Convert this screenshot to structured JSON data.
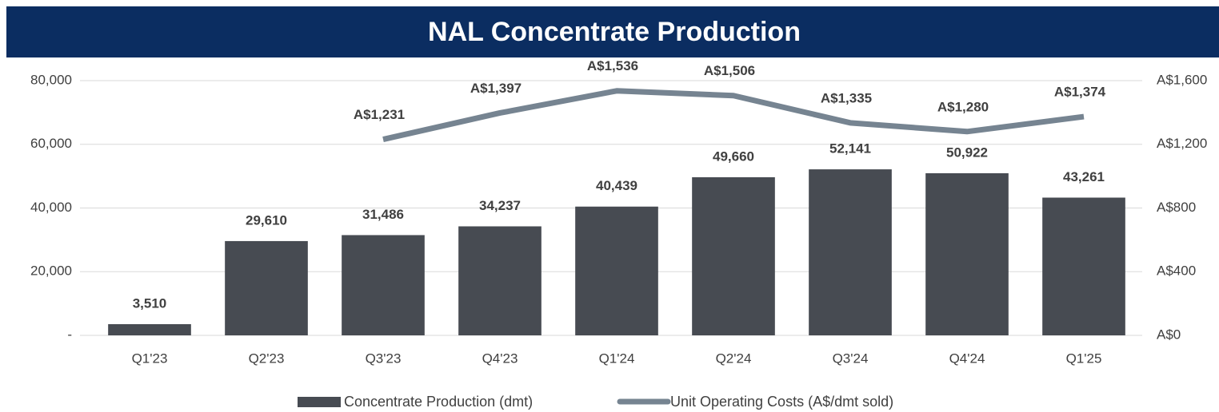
{
  "chart_data": {
    "type": "combo",
    "title": "NAL Concentrate Production",
    "categories": [
      "Q1'23",
      "Q2'23",
      "Q3'23",
      "Q4'23",
      "Q1'24",
      "Q2'24",
      "Q3'24",
      "Q4'24",
      "Q1'25"
    ],
    "series": [
      {
        "name": "Concentrate Production (dmt)",
        "type": "bar",
        "color": "#474b52",
        "values": [
          3510,
          29610,
          31486,
          34237,
          40439,
          49660,
          52141,
          50922,
          43261
        ],
        "value_labels": [
          "3,510",
          "29,610",
          "31,486",
          "34,237",
          "40,439",
          "49,660",
          "52,141",
          "50,922",
          "43,261"
        ]
      },
      {
        "name": "Unit Operating Costs (A$/dmt sold)",
        "type": "line",
        "axis": "y2",
        "color": "#768491",
        "values": [
          null,
          null,
          1231,
          1397,
          1536,
          1506,
          1335,
          1280,
          1374
        ],
        "value_labels": [
          null,
          null,
          "A$1,231",
          "A$1,397",
          "A$1,536",
          "A$1,506",
          "A$1,335",
          "A$1,280",
          "A$1,374"
        ]
      }
    ],
    "ylim": [
      0,
      80000
    ],
    "yticks": [
      {
        "value": 0,
        "label": "-"
      },
      {
        "value": 20000,
        "label": "20,000"
      },
      {
        "value": 40000,
        "label": "40,000"
      },
      {
        "value": 60000,
        "label": "60,000"
      },
      {
        "value": 80000,
        "label": "80,000"
      }
    ],
    "y2lim": [
      0,
      1600
    ],
    "y2ticks": [
      {
        "value": 0,
        "label": "A$0"
      },
      {
        "value": 400,
        "label": "A$400"
      },
      {
        "value": 800,
        "label": "A$800"
      },
      {
        "value": 1200,
        "label": "A$1,200"
      },
      {
        "value": 1600,
        "label": "A$1,600"
      }
    ],
    "grid": true,
    "legend": "bottom"
  }
}
